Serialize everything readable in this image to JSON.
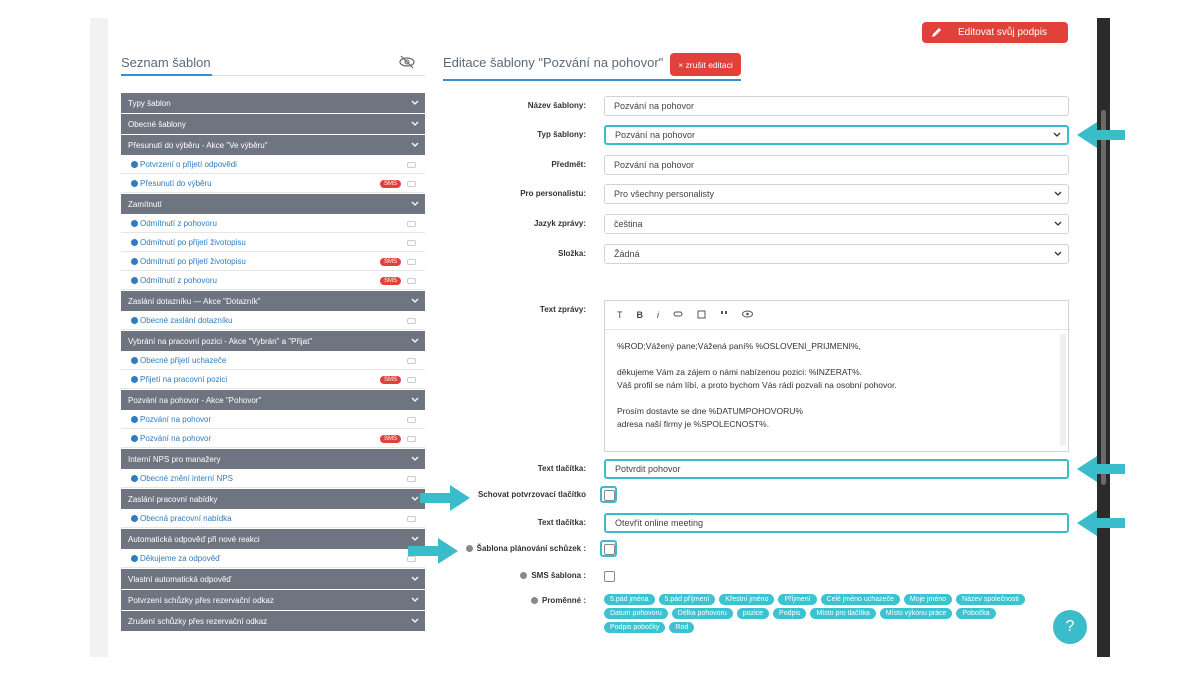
{
  "header": {
    "signature_button": "Editovat svůj podpis"
  },
  "left_panel": {
    "title": "Seznam šablon",
    "rows": [
      {
        "kind": "group",
        "label": "Typy šablon"
      },
      {
        "kind": "group",
        "label": "Obecné šablony"
      },
      {
        "kind": "group",
        "label": "Přesunutí do výběru - Akce \"Ve výběru\""
      },
      {
        "kind": "item",
        "label": "Potvrzení o přijetí odpovědi"
      },
      {
        "kind": "item",
        "label": "Přesunutí do výběru",
        "badge": "SMS"
      },
      {
        "kind": "group",
        "label": "Zamítnutí"
      },
      {
        "kind": "item",
        "label": "Odmítnutí z pohovoru"
      },
      {
        "kind": "item",
        "label": "Odmítnutí po přijetí životopisu"
      },
      {
        "kind": "item",
        "label": "Odmítnutí po přijetí životopisu",
        "badge": "SMS"
      },
      {
        "kind": "item",
        "label": "Odmítnutí z pohovoru",
        "badge": "SMS"
      },
      {
        "kind": "group",
        "label": "Zaslání dotazníku — Akce \"Dotazník\""
      },
      {
        "kind": "item",
        "label": "Obecné zaslání dotazníku"
      },
      {
        "kind": "group",
        "label": "Vybrání na pracovní pozici - Akce \"Vybrán\" a \"Přijat\""
      },
      {
        "kind": "item",
        "label": "Obecné přijetí uchazeče"
      },
      {
        "kind": "item",
        "label": "Přijetí na pracovní pozici",
        "badge": "SMS"
      },
      {
        "kind": "group",
        "label": "Pozvání na pohovor - Akce \"Pohovor\""
      },
      {
        "kind": "item",
        "label": "Pozvání na pohovor"
      },
      {
        "kind": "item",
        "label": "Pozvání na pohovor",
        "badge": "SMS"
      },
      {
        "kind": "group",
        "label": "Interní NPS pro manažery"
      },
      {
        "kind": "item",
        "label": "Obecné znění interní NPS"
      },
      {
        "kind": "group",
        "label": "Zaslání pracovní nabídky"
      },
      {
        "kind": "item",
        "label": "Obecná pracovní nabídka"
      },
      {
        "kind": "group",
        "label": "Automatická odpověď při nové reakci"
      },
      {
        "kind": "item",
        "label": "Děkujeme za odpověď"
      },
      {
        "kind": "group",
        "label": "Vlastní automatická odpověď"
      },
      {
        "kind": "group",
        "label": "Potvrzení schůzky přes rezervační odkaz"
      },
      {
        "kind": "group",
        "label": "Zrušení schůzky přes rezervační odkaz"
      }
    ]
  },
  "editor": {
    "title": "Editace šablony \"Pozvání na pohovor\"",
    "cancel_button": "× zrušit editaci",
    "fields": [
      {
        "label": "Název šablony:",
        "control": "input",
        "value": "Pozvání na pohovor"
      },
      {
        "label": "Typ šablony:",
        "control": "select",
        "value": "Pozvání na pohovor",
        "highlighted": true
      },
      {
        "label": "Předmět:",
        "control": "input",
        "value": "Pozvání na pohovor"
      },
      {
        "label": "Pro personalistu:",
        "control": "select",
        "value": "Pro všechny personalisty"
      },
      {
        "label": "Jazyk zprávy:",
        "control": "select",
        "value": "čeština"
      },
      {
        "label": "Složka:",
        "control": "select",
        "value": "Žádná"
      },
      {
        "label": "Text zprávy:",
        "control": "richtext",
        "toolbar": [
          "T",
          "B",
          "i"
        ],
        "paragraphs": [
          [
            "%ROD;Vážený pane;Vážená paní% %OSLOVENI_PRIJMENI%,"
          ],
          [
            "děkujeme Vám za zájem o námi nabízenou pozici: %INZERAT%.",
            "Váš profil se nám líbí, a proto bychom Vás rádi pozvali na osobní pohovor."
          ],
          [
            "Prosím dostavte se dne %DATUMPOHOVORU%",
            "adresa naší firmy je %SPOLECNOST%."
          ]
        ]
      },
      {
        "label": "Text tlačítka:",
        "control": "input",
        "value": "Potvrdit pohovor",
        "highlighted": true
      },
      {
        "label": "Schovat potvrzovací tlačítko",
        "control": "checkbox",
        "highlighted": true
      },
      {
        "label": "Text tlačítka:",
        "control": "input",
        "value": "Otevřít online meeting",
        "highlighted": true
      },
      {
        "label": "Šablona plánování schůzek :",
        "control": "checkbox",
        "help": true,
        "highlighted": true
      },
      {
        "label": "SMS šablona :",
        "control": "checkbox",
        "help": true
      },
      {
        "label": "Proměnné :",
        "control": "tags",
        "help": true,
        "tags": [
          "5.pád jména",
          "5.pád příjmení",
          "Křestní jméno",
          "Příjmení",
          "Celé jméno uchazeče",
          "Moje jméno",
          "Název společnosti",
          "Datum pohovoru",
          "Délka pohovoru",
          "pozice",
          "Podpis",
          "Místo pro tlačítka",
          "Místo výkonu práce",
          "Pobočka",
          "Podpis pobočky",
          "Rod"
        ]
      }
    ]
  },
  "help_button": "?"
}
